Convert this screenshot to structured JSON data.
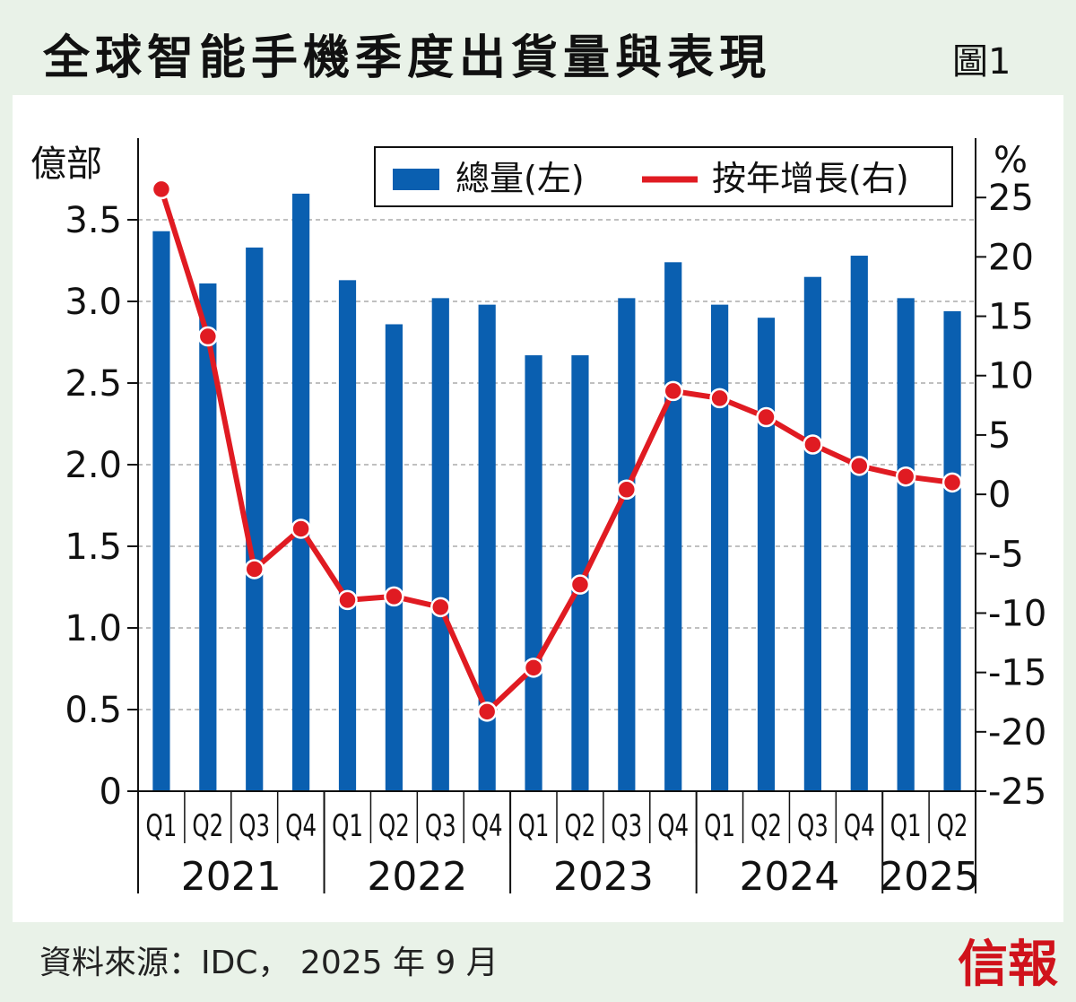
{
  "title": "全球智能手機季度出貨量與表現",
  "figure_label": "圖1",
  "source": "資料來源：IDC， 2025 年 9 月",
  "logo_text": "信報",
  "chart_data": {
    "type": "bar+line",
    "y_left_label": "億部",
    "y_right_label": "%",
    "y_left_ticks": [
      "0",
      "0.5",
      "1.0",
      "1.5",
      "2.0",
      "2.5",
      "3.0",
      "3.5"
    ],
    "y_right_ticks": [
      "-25",
      "-20",
      "-15",
      "-10",
      "-5",
      "0",
      "5",
      "10",
      "15",
      "20",
      "25"
    ],
    "ylim_left": [
      0,
      4.0
    ],
    "ylim_right": [
      -25,
      30
    ],
    "quarters": [
      "Q1",
      "Q2",
      "Q3",
      "Q4",
      "Q1",
      "Q2",
      "Q3",
      "Q4",
      "Q1",
      "Q2",
      "Q3",
      "Q4",
      "Q1",
      "Q2",
      "Q3",
      "Q4",
      "Q1",
      "Q2"
    ],
    "years": [
      {
        "label": "2021",
        "span": 4
      },
      {
        "label": "2022",
        "span": 4
      },
      {
        "label": "2023",
        "span": 4
      },
      {
        "label": "2024",
        "span": 4
      },
      {
        "label": "2025",
        "span": 2
      }
    ],
    "series": [
      {
        "name": "總量(左)",
        "type": "bar",
        "axis": "left",
        "color": "#0a5fb0",
        "values": [
          3.43,
          3.11,
          3.33,
          3.66,
          3.13,
          2.86,
          3.02,
          2.98,
          2.67,
          2.67,
          3.02,
          3.24,
          2.98,
          2.9,
          3.15,
          3.28,
          3.02,
          2.94
        ]
      },
      {
        "name": "按年增長(右)",
        "type": "line",
        "axis": "right",
        "color": "#e01b22",
        "values": [
          25.7,
          13.3,
          -6.3,
          -2.9,
          -8.9,
          -8.6,
          -9.5,
          -18.3,
          -14.6,
          -7.6,
          0.4,
          8.7,
          8.1,
          6.5,
          4.2,
          2.4,
          1.5,
          1.0
        ]
      }
    ],
    "grid": "dashed horizontal",
    "legend": "top-right"
  }
}
